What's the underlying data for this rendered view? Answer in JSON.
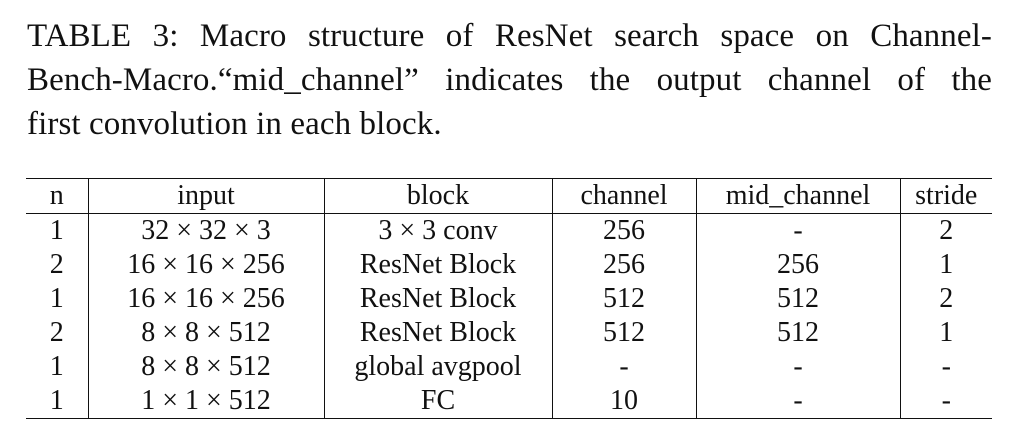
{
  "caption": {
    "line1": "TABLE 3: Macro structure of ResNet search space on Channel-",
    "line2": "Bench-Macro.“mid_channel” indicates the output channel of the",
    "line3": "first convolution in each block."
  },
  "table": {
    "headers": {
      "n": "n",
      "input": "input",
      "block": "block",
      "channel": "channel",
      "mid_channel": "mid_channel",
      "stride": "stride"
    },
    "rows": [
      {
        "n": "1",
        "input": "32 × 32 × 3",
        "block": "3 × 3 conv",
        "channel": "256",
        "mid_channel": "-",
        "stride": "2"
      },
      {
        "n": "2",
        "input": "16 × 16 × 256",
        "block": "ResNet Block",
        "channel": "256",
        "mid_channel": "256",
        "stride": "1"
      },
      {
        "n": "1",
        "input": "16 × 16 × 256",
        "block": "ResNet Block",
        "channel": "512",
        "mid_channel": "512",
        "stride": "2"
      },
      {
        "n": "2",
        "input": "8 × 8 × 512",
        "block": "ResNet Block",
        "channel": "512",
        "mid_channel": "512",
        "stride": "1"
      },
      {
        "n": "1",
        "input": "8 × 8 × 512",
        "block": "global avgpool",
        "channel": "-",
        "mid_channel": "-",
        "stride": "-"
      },
      {
        "n": "1",
        "input": "1 × 1 × 512",
        "block": "FC",
        "channel": "10",
        "mid_channel": "-",
        "stride": "-"
      }
    ]
  }
}
